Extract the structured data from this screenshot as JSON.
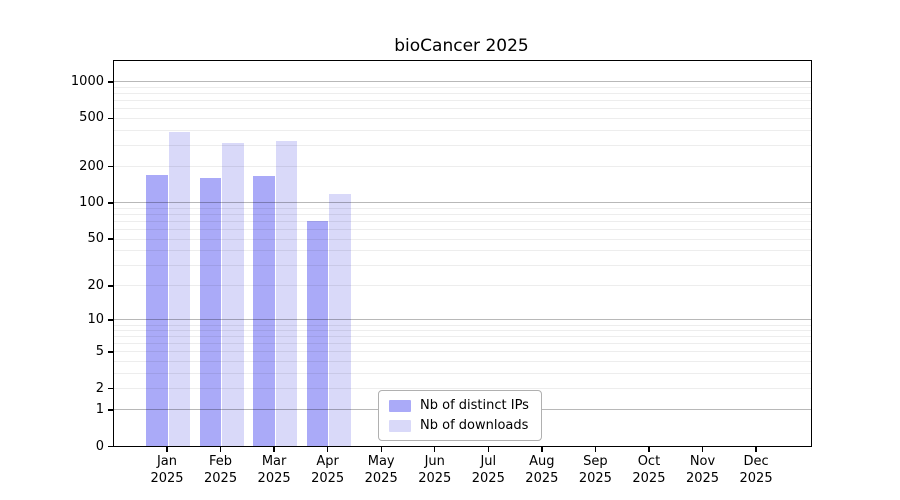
{
  "chart_data": {
    "type": "bar",
    "title": "bioCancer 2025",
    "categories": [
      "Jan",
      "Feb",
      "Mar",
      "Apr",
      "May",
      "Jun",
      "Jul",
      "Aug",
      "Sep",
      "Oct",
      "Nov",
      "Dec"
    ],
    "x_year_label": "2025",
    "series": [
      {
        "name": "Nb of distinct IPs",
        "color": "#aaaaf8",
        "values": [
          170,
          160,
          165,
          70,
          0,
          0,
          0,
          0,
          0,
          0,
          0,
          0
        ]
      },
      {
        "name": "Nb of downloads",
        "color": "#d9d9f9",
        "values": [
          380,
          310,
          320,
          118,
          0,
          0,
          0,
          0,
          0,
          0,
          0,
          0
        ]
      }
    ],
    "y_ticks": [
      0,
      1,
      2,
      5,
      10,
      20,
      50,
      100,
      200,
      500,
      1000
    ],
    "y_scale": "log1p",
    "y_axis_max": 1460,
    "grid": true,
    "legend_position": "lower-center",
    "colors": {
      "axis": "#000000",
      "major_grid": "#b6b6b6",
      "minor_grid": "#ededed",
      "background": "#ffffff"
    }
  }
}
